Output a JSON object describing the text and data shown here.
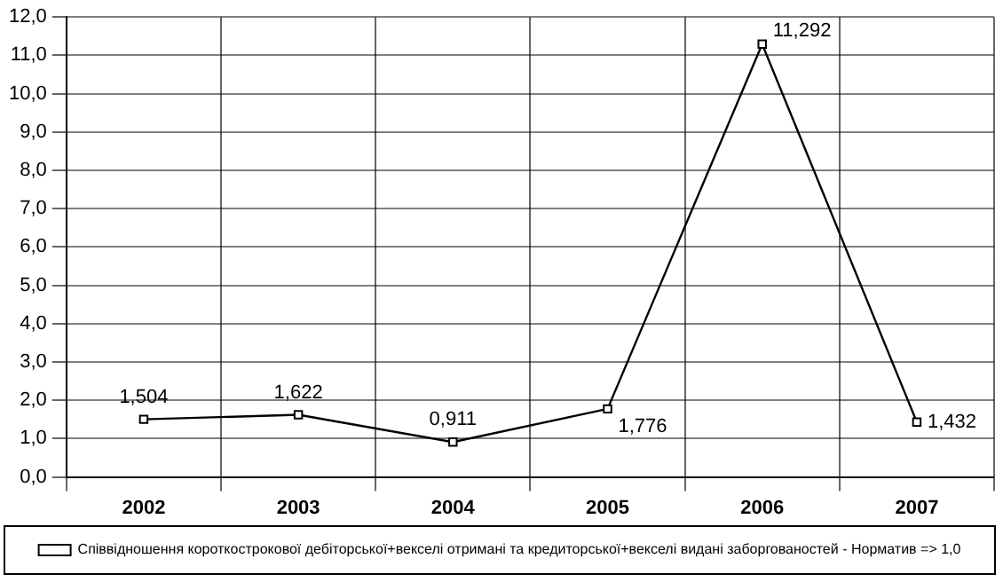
{
  "chart_data": {
    "type": "line",
    "categories": [
      "2002",
      "2003",
      "2004",
      "2005",
      "2006",
      "2007"
    ],
    "series": [
      {
        "name": "Співвідношення короткострокової дебіторської+векселі отримані та кредиторської+векселі видані заборгованостей - Норматив => 1,0",
        "color": "#000000",
        "values": [
          1.504,
          1.622,
          0.911,
          1.776,
          11.292,
          1.432
        ],
        "value_labels": [
          "1,504",
          "1,622",
          "0,911",
          "1,776",
          "11,292",
          "1,432"
        ]
      }
    ],
    "ylim": [
      0,
      12
    ],
    "yticks": [
      {
        "value": 0,
        "label": "0,0"
      },
      {
        "value": 1,
        "label": "1,0"
      },
      {
        "value": 2,
        "label": "2,0"
      },
      {
        "value": 3,
        "label": "3,0"
      },
      {
        "value": 4,
        "label": "4,0"
      },
      {
        "value": 5,
        "label": "5,0"
      },
      {
        "value": 6,
        "label": "6,0"
      },
      {
        "value": 7,
        "label": "7,0"
      },
      {
        "value": 8,
        "label": "8,0"
      },
      {
        "value": 9,
        "label": "9,0"
      },
      {
        "value": 10,
        "label": "10,0"
      },
      {
        "value": 11,
        "label": "11,0"
      },
      {
        "value": 12,
        "label": "12,0"
      }
    ],
    "grid": true,
    "legend": "bottom",
    "marker": "square",
    "line_style": "solid"
  }
}
